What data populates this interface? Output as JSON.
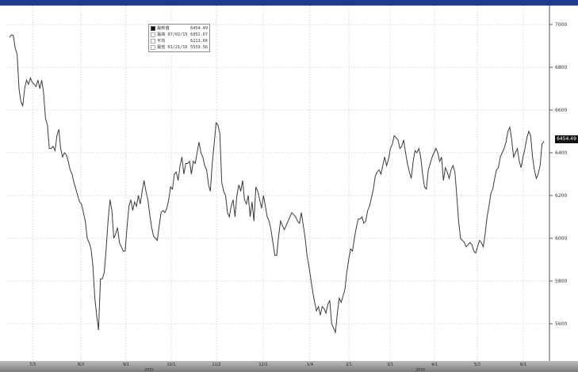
{
  "chart_data": {
    "type": "line",
    "title": "",
    "xlabel": "",
    "ylabel": "",
    "ylim": [
      5450,
      7080
    ],
    "yticks": [
      "7000",
      "6800",
      "6600",
      "6400",
      "6200",
      "6000",
      "5800",
      "5600"
    ],
    "grid": true,
    "legend_position": "top-left",
    "legend": [
      {
        "label": "最新價",
        "value": "6454.49"
      },
      {
        "label": "最高 07/02/15",
        "value": "6952.67"
      },
      {
        "label": "平均",
        "value": "6213.66"
      },
      {
        "label": "最低 01/21/16",
        "value": "5559.56"
      }
    ],
    "last_value_label": "6454.49",
    "series": [
      {
        "values": [
          6940,
          6952,
          6948,
          6890,
          6860,
          6700,
          6640,
          6620,
          6700,
          6740,
          6720,
          6750,
          6730,
          6720,
          6710,
          6740,
          6700,
          6740,
          6680,
          6560,
          6530,
          6420,
          6420,
          6430,
          6410,
          6480,
          6510,
          6420,
          6380,
          6400,
          6390,
          6360,
          6320,
          6300,
          6260,
          6230,
          6200,
          6170,
          6160,
          6120,
          6080,
          6000,
          5980,
          5950,
          5870,
          5720,
          5640,
          5570,
          5810,
          5810,
          5840,
          5950,
          6080,
          6180,
          6130,
          6000,
          6020,
          6050,
          5980,
          5960,
          5940,
          5940,
          6050,
          6150,
          6180,
          6130,
          6170,
          6150,
          6200,
          6160,
          6220,
          6270,
          6220,
          6180,
          6110,
          6050,
          6010,
          6000,
          5990,
          6060,
          6120,
          6130,
          6120,
          6140,
          6180,
          6240,
          6230,
          6300,
          6310,
          6270,
          6340,
          6380,
          6300,
          6350,
          6350,
          6360,
          6300,
          6360,
          6350,
          6400,
          6450,
          6400,
          6380,
          6340,
          6320,
          6250,
          6220,
          6350,
          6440,
          6540,
          6530,
          6490,
          6260,
          6220,
          6200,
          6120,
          6100,
          6150,
          6180,
          6100,
          6200,
          6250,
          6220,
          6270,
          6180,
          6160,
          6200,
          6100,
          6170,
          6080,
          6240,
          6220,
          6180,
          6140,
          6200,
          6150,
          6100,
          6080,
          6040,
          5980,
          5920,
          5920,
          6010,
          6080,
          6060,
          6040,
          6060,
          6080,
          6100,
          6120,
          6110,
          6100,
          6080,
          6070,
          6120,
          6060,
          6000,
          5920,
          5870,
          5810,
          5750,
          5700,
          5660,
          5680,
          5640,
          5680,
          5670,
          5650,
          5690,
          5710,
          5600,
          5580,
          5560,
          5650,
          5720,
          5700,
          5730,
          5760,
          5840,
          5900,
          5950,
          5940,
          6000,
          6050,
          6090,
          6090,
          6100,
          6070,
          6080,
          6130,
          6150,
          6190,
          6230,
          6290,
          6310,
          6320,
          6300,
          6340,
          6380,
          6340,
          6370,
          6420,
          6440,
          6480,
          6470,
          6460,
          6420,
          6430,
          6460,
          6400,
          6350,
          6310,
          6280,
          6360,
          6410,
          6400,
          6420,
          6380,
          6300,
          6240,
          6230,
          6320,
          6350,
          6380,
          6400,
          6420,
          6400,
          6360,
          6380,
          6270,
          6330,
          6310,
          6280,
          6320,
          6340,
          6310,
          6200,
          6080,
          6000,
          5990,
          5980,
          5960,
          5970,
          5980,
          5970,
          5940,
          5930,
          5960,
          5990,
          5980,
          5960,
          6020,
          6100,
          6150,
          6210,
          6230,
          6280,
          6320,
          6330,
          6380,
          6400,
          6420,
          6450,
          6500,
          6520,
          6460,
          6380,
          6400,
          6420,
          6360,
          6330,
          6380,
          6420,
          6470,
          6500,
          6480,
          6380,
          6320,
          6280,
          6300,
          6340,
          6440,
          6454
        ]
      }
    ]
  },
  "x_axis": {
    "tick_labels": [
      "7/3",
      "8/3",
      "9/1",
      "10/1",
      "11/2",
      "12/1",
      "1/4",
      "2/1",
      "3/1",
      "4/1",
      "5/2",
      "6/1"
    ],
    "year_labels": [
      "2015",
      "2016"
    ]
  }
}
